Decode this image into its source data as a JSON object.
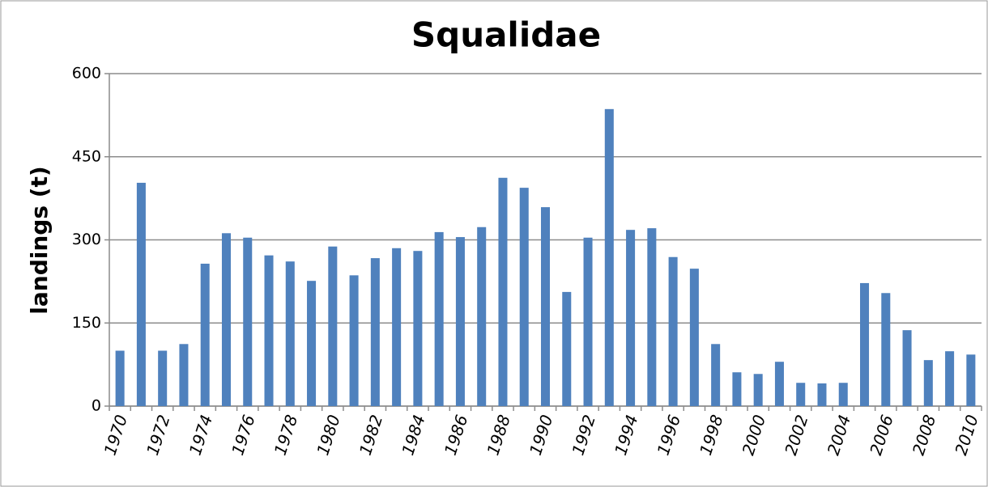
{
  "chart_data": {
    "type": "bar",
    "title": "Squalidae",
    "y_label": "landings (t)",
    "categories": [
      "1970",
      null,
      "1972",
      null,
      "1974",
      null,
      "1976",
      null,
      "1978",
      null,
      "1980",
      null,
      "1982",
      null,
      "1984",
      null,
      "1986",
      null,
      "1988",
      null,
      "1990",
      null,
      "1992",
      null,
      "1994",
      null,
      "1996",
      null,
      "1998",
      null,
      "2000",
      null,
      "2002",
      null,
      "2004",
      null,
      "2006",
      null,
      "2008",
      null,
      "2010"
    ],
    "values": [
      100,
      403,
      100,
      112,
      257,
      312,
      304,
      272,
      261,
      226,
      288,
      236,
      267,
      285,
      280,
      314,
      305,
      323,
      412,
      394,
      359,
      206,
      304,
      536,
      318,
      321,
      269,
      248,
      112,
      61,
      58,
      80,
      42,
      41,
      42,
      222,
      204,
      137,
      83,
      99,
      93
    ],
    "color": "#4f81bd",
    "ylim": [
      0,
      600
    ],
    "yticks": [
      0,
      150,
      300,
      450,
      600
    ],
    "grid": true
  }
}
